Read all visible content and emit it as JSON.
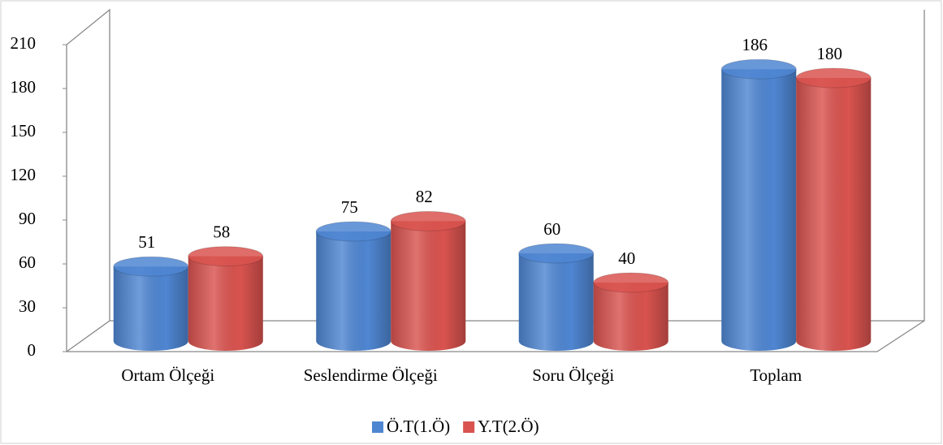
{
  "chart_data": {
    "type": "bar3d",
    "categories": [
      "Ortam Ölçeği",
      "Seslendirme Ölçeği",
      "Soru Ölçeği",
      "Toplam"
    ],
    "series": [
      {
        "name": "Ö.T(1.Ö)",
        "color": "#4f86d2",
        "values": [
          51,
          75,
          60,
          186
        ]
      },
      {
        "name": "Y.T(2.Ö)",
        "color": "#d9534f",
        "values": [
          58,
          82,
          40,
          180
        ]
      }
    ],
    "ylim": [
      0,
      210
    ],
    "yticks": [
      0,
      30,
      60,
      90,
      120,
      150,
      180,
      210
    ],
    "legend": "bottom"
  }
}
